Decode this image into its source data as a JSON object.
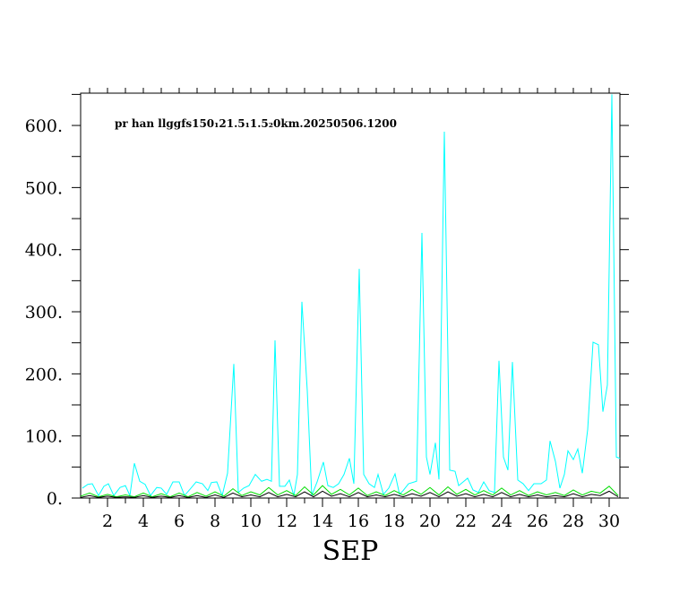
{
  "chart_data": {
    "type": "line",
    "title": "pr han llggfs150₁21.5₁1.5₂0km.20250506.1200",
    "xlabel": "SEP",
    "xlim": [
      0.5,
      30.6
    ],
    "xticks": [
      2,
      4,
      6,
      8,
      10,
      12,
      14,
      16,
      18,
      20,
      22,
      24,
      26,
      28,
      30
    ],
    "xminorticks": [
      1,
      2,
      3,
      4,
      5,
      6,
      7,
      8,
      9,
      10,
      11,
      12,
      13,
      14,
      15,
      16,
      17,
      18,
      19,
      20,
      21,
      22,
      23,
      24,
      25,
      26,
      27,
      28,
      29,
      30
    ],
    "ylim": [
      0,
      652
    ],
    "yticks": [
      {
        "value": 0,
        "label": "0."
      },
      {
        "value": 100,
        "label": "100."
      },
      {
        "value": 200,
        "label": "200."
      },
      {
        "value": 300,
        "label": "300."
      },
      {
        "value": 400,
        "label": "400."
      },
      {
        "value": 500,
        "label": "500."
      },
      {
        "value": 600,
        "label": "600."
      }
    ],
    "yminorticks": [
      50,
      150,
      250,
      350,
      450,
      550,
      650
    ],
    "series": [
      {
        "color": "#00ffff",
        "x": [
          0.6,
          0.9,
          1.15,
          1.5,
          1.8,
          2.05,
          2.35,
          2.7,
          3.0,
          3.25,
          3.5,
          3.8,
          4.1,
          4.4,
          4.75,
          5.0,
          5.3,
          5.65,
          6.0,
          6.3,
          6.6,
          6.95,
          7.3,
          7.6,
          7.8,
          8.1,
          8.4,
          8.7,
          9.05,
          9.3,
          9.6,
          9.9,
          10.25,
          10.6,
          10.9,
          11.15,
          11.35,
          11.6,
          11.9,
          12.15,
          12.4,
          12.6,
          12.85,
          13.15,
          13.4,
          13.7,
          14.05,
          14.3,
          14.6,
          14.9,
          15.2,
          15.5,
          15.75,
          16.05,
          16.3,
          16.6,
          16.9,
          17.1,
          17.4,
          17.7,
          18.05,
          18.3,
          18.5,
          18.8,
          19.25,
          19.55,
          19.8,
          20.0,
          20.3,
          20.5,
          20.8,
          21.1,
          21.4,
          21.6,
          21.85,
          22.1,
          22.4,
          22.7,
          23.0,
          23.3,
          23.6,
          23.85,
          24.1,
          24.35,
          24.6,
          24.9,
          25.2,
          25.5,
          25.8,
          26.2,
          26.5,
          26.7,
          27.0,
          27.25,
          27.5,
          27.7,
          28.0,
          28.25,
          28.5,
          28.8,
          29.1,
          29.4,
          29.65,
          29.9,
          30.15,
          30.4,
          30.6
        ],
        "values": [
          16,
          22,
          23,
          4,
          19,
          23,
          4,
          17,
          20,
          4,
          56,
          27,
          22,
          4,
          17,
          16,
          6,
          26,
          26,
          4,
          14,
          26,
          23,
          12,
          25,
          26,
          4,
          40,
          216,
          9,
          16,
          20,
          38,
          27,
          30,
          27,
          254,
          19,
          19,
          29,
          4,
          38,
          316,
          173,
          4,
          26,
          58,
          20,
          17,
          23,
          38,
          64,
          23,
          369,
          38,
          23,
          17,
          38,
          6,
          16,
          39,
          6,
          12,
          23,
          27,
          427,
          66,
          38,
          89,
          30,
          590,
          45,
          43,
          20,
          26,
          32,
          13,
          9,
          26,
          12,
          9,
          221,
          66,
          45,
          219,
          29,
          23,
          12,
          23,
          23,
          29,
          92,
          59,
          16,
          38,
          76,
          62,
          79,
          40,
          110,
          251,
          247,
          139,
          182,
          650,
          66,
          64
        ]
      },
      {
        "color": "#00dd00",
        "x": [
          0.5,
          1,
          1.5,
          2,
          2.5,
          3,
          3.5,
          4,
          4.5,
          5,
          5.5,
          6,
          6.5,
          7,
          7.5,
          8,
          8.5,
          9,
          9.5,
          10,
          10.5,
          11,
          11.5,
          12,
          12.5,
          13,
          13.5,
          14,
          14.5,
          15,
          15.5,
          16,
          16.5,
          17,
          17.5,
          18,
          18.5,
          19,
          19.5,
          20,
          20.5,
          21,
          21.5,
          22,
          22.5,
          23,
          23.5,
          24,
          24.5,
          25,
          25.5,
          26,
          26.5,
          27,
          27.5,
          28,
          28.5,
          29,
          29.5,
          30,
          30.5
        ],
        "values": [
          3,
          8,
          2,
          6,
          2,
          5,
          2,
          8,
          2,
          7,
          2,
          8,
          2,
          9,
          3,
          10,
          3,
          15,
          4,
          10,
          5,
          17,
          5,
          12,
          4,
          18,
          5,
          20,
          6,
          14,
          5,
          16,
          4,
          10,
          4,
          12,
          5,
          14,
          6,
          17,
          5,
          18,
          6,
          14,
          5,
          12,
          5,
          16,
          5,
          12,
          4,
          10,
          5,
          9,
          4,
          13,
          5,
          11,
          8,
          19,
          4
        ]
      },
      {
        "color": "#000000",
        "x": [
          0.5,
          1,
          1.5,
          2,
          2.5,
          3,
          3.5,
          4,
          4.5,
          5,
          5.5,
          6,
          6.5,
          7,
          7.5,
          8,
          8.5,
          9,
          9.5,
          10,
          10.5,
          11,
          11.5,
          12,
          12.5,
          13,
          13.5,
          14,
          14.5,
          15,
          15.5,
          16,
          16.5,
          17,
          17.5,
          18,
          18.5,
          19,
          19.5,
          20,
          20.5,
          21,
          21.5,
          22,
          22.5,
          23,
          23.5,
          24,
          24.5,
          25,
          25.5,
          26,
          26.5,
          27,
          27.5,
          28,
          28.5,
          29,
          29.5,
          30,
          30.5
        ],
        "values": [
          1,
          4,
          1,
          3,
          1,
          2,
          1,
          4,
          1,
          3,
          1,
          4,
          1,
          4,
          1,
          5,
          1,
          8,
          2,
          5,
          2,
          9,
          2,
          6,
          2,
          10,
          2,
          11,
          3,
          7,
          2,
          9,
          2,
          5,
          2,
          6,
          2,
          7,
          3,
          9,
          2,
          10,
          3,
          7,
          2,
          6,
          2,
          9,
          2,
          6,
          2,
          5,
          2,
          4,
          2,
          7,
          2,
          6,
          4,
          11,
          2
        ]
      }
    ]
  }
}
